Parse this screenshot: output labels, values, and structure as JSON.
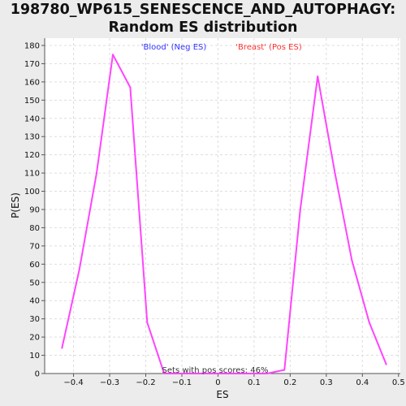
{
  "chart_data": {
    "type": "line",
    "title_line1": "198780_WP615_SENESCENCE_AND_AUTOPHAGY:",
    "title_line2": "Random ES distribution",
    "xlabel": "ES",
    "ylabel": "P(ES)",
    "xlim": [
      -0.48,
      0.505
    ],
    "ylim": [
      0,
      184
    ],
    "x_ticks": [
      -0.4,
      -0.3,
      -0.2,
      -0.1,
      0,
      0.1,
      0.2,
      0.3,
      0.4,
      0.5
    ],
    "x_tick_labels": [
      "−0.4",
      "−0.3",
      "−0.2",
      "−0.1",
      "0",
      "0.1",
      "0.2",
      "0.3",
      "0.4",
      "0.5"
    ],
    "y_ticks": [
      0,
      10,
      20,
      30,
      40,
      50,
      60,
      70,
      80,
      90,
      100,
      110,
      120,
      130,
      140,
      150,
      160,
      170,
      180
    ],
    "grid": true,
    "line_color": "#ff44ff",
    "legend_neg": {
      "label": "'Blood' (Neg ES)",
      "color": "#3333ff"
    },
    "legend_pos": {
      "label": "'Breast' (Pos ES)",
      "color": "#ff3333"
    },
    "annotation": "Sets with pos scores: 46%",
    "series": [
      {
        "x": [
          -0.432,
          -0.384,
          -0.336,
          -0.291,
          -0.243,
          -0.196,
          -0.149,
          -0.101,
          -0.054,
          -0.006,
          0.041,
          0.089,
          0.136,
          0.184,
          0.228,
          0.276,
          0.324,
          0.371,
          0.419,
          0.466
        ],
        "y": [
          14,
          57,
          110,
          175,
          157,
          28,
          0,
          0,
          0,
          0,
          0,
          0,
          0,
          2,
          90,
          163,
          110,
          62,
          28,
          5
        ]
      }
    ]
  }
}
